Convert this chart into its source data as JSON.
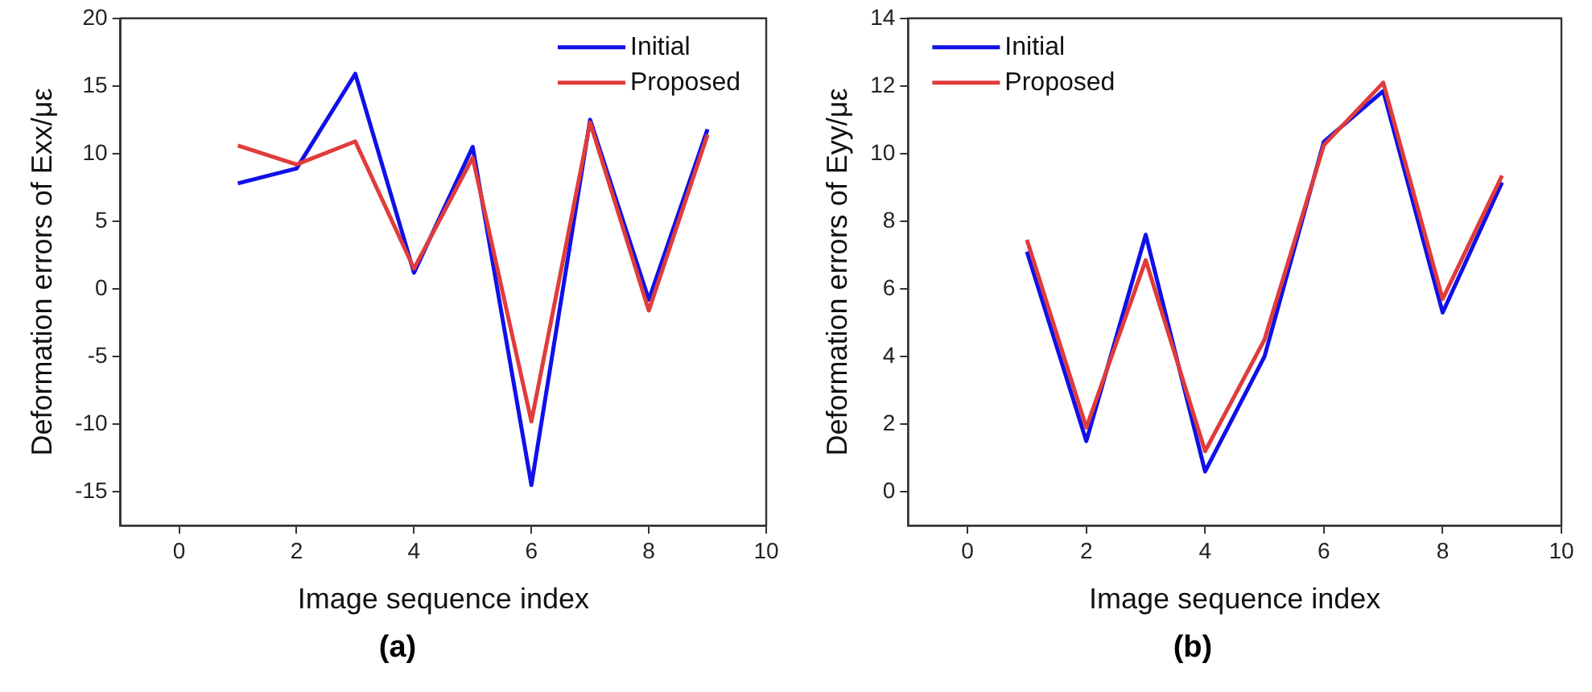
{
  "chart_data": [
    {
      "type": "line",
      "xlabel": "Image sequence index",
      "ylabel": "Deformation errors of Exx/με",
      "annotations": [
        "(a)"
      ],
      "xlim": [
        -1,
        10
      ],
      "xticks": [
        0,
        2,
        4,
        6,
        8,
        10
      ],
      "ylim": [
        -17.5,
        20
      ],
      "yticks": [
        -15,
        -10,
        -5,
        0,
        5,
        10,
        15,
        20
      ],
      "legend": "top right",
      "grid": false,
      "marker": "none",
      "line_style": "solid",
      "x": [
        1,
        2,
        3,
        4,
        5,
        6,
        7,
        8,
        9
      ],
      "series": [
        {
          "name": "Initial",
          "color": "#1010e8",
          "values": [
            7.8,
            8.9,
            15.9,
            1.2,
            10.5,
            -14.5,
            12.5,
            -0.8,
            11.8
          ]
        },
        {
          "name": "Proposed",
          "color": "#e03c3c",
          "values": [
            10.6,
            9.2,
            10.9,
            1.5,
            9.7,
            -9.8,
            12.3,
            -1.6,
            11.4
          ]
        }
      ]
    },
    {
      "type": "line",
      "xlabel": "Image sequence index",
      "ylabel": "Deformation errors of Eyy/με",
      "annotations": [
        "(b)"
      ],
      "xlim": [
        -1,
        10
      ],
      "xticks": [
        0,
        2,
        4,
        6,
        8,
        10
      ],
      "ylim": [
        -1,
        14
      ],
      "yticks": [
        0,
        2,
        4,
        6,
        8,
        10,
        12,
        14
      ],
      "legend": "top left",
      "grid": false,
      "marker": "none",
      "line_style": "solid",
      "x": [
        1,
        2,
        3,
        4,
        5,
        6,
        7,
        8,
        9
      ],
      "series": [
        {
          "name": "Initial",
          "color": "#1010e8",
          "values": [
            7.1,
            1.5,
            7.6,
            0.6,
            4.0,
            10.35,
            11.85,
            5.3,
            9.15
          ]
        },
        {
          "name": "Proposed",
          "color": "#e03c3c",
          "values": [
            7.45,
            1.9,
            6.85,
            1.2,
            4.5,
            10.25,
            12.1,
            5.7,
            9.35
          ]
        }
      ]
    }
  ]
}
